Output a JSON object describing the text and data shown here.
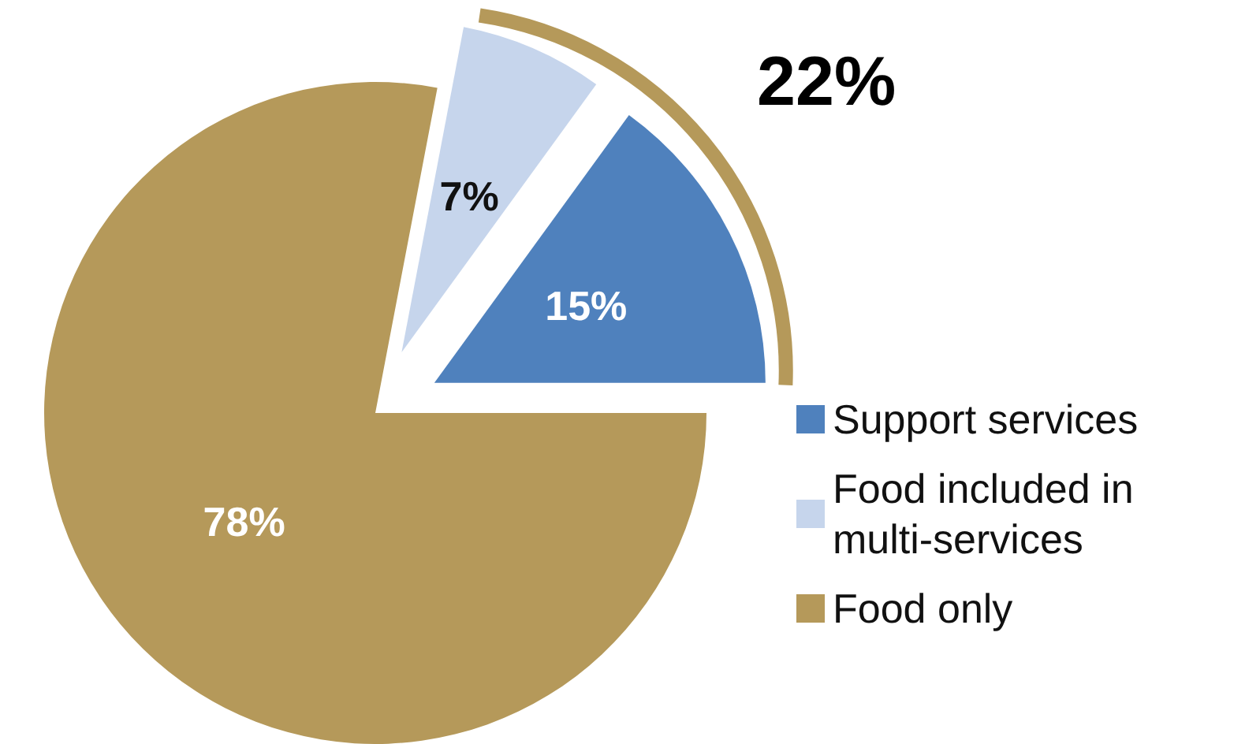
{
  "chart_data": {
    "type": "pie",
    "categories": [
      "Support services",
      "Food included in multi-services",
      "Food only"
    ],
    "values": [
      15,
      7,
      78
    ],
    "colors": [
      "#4f81bd",
      "#c6d5ec",
      "#b5995a"
    ],
    "value_labels": [
      "15%",
      "7%",
      "78%"
    ],
    "legend": "right",
    "annotations": [
      "22%"
    ]
  }
}
